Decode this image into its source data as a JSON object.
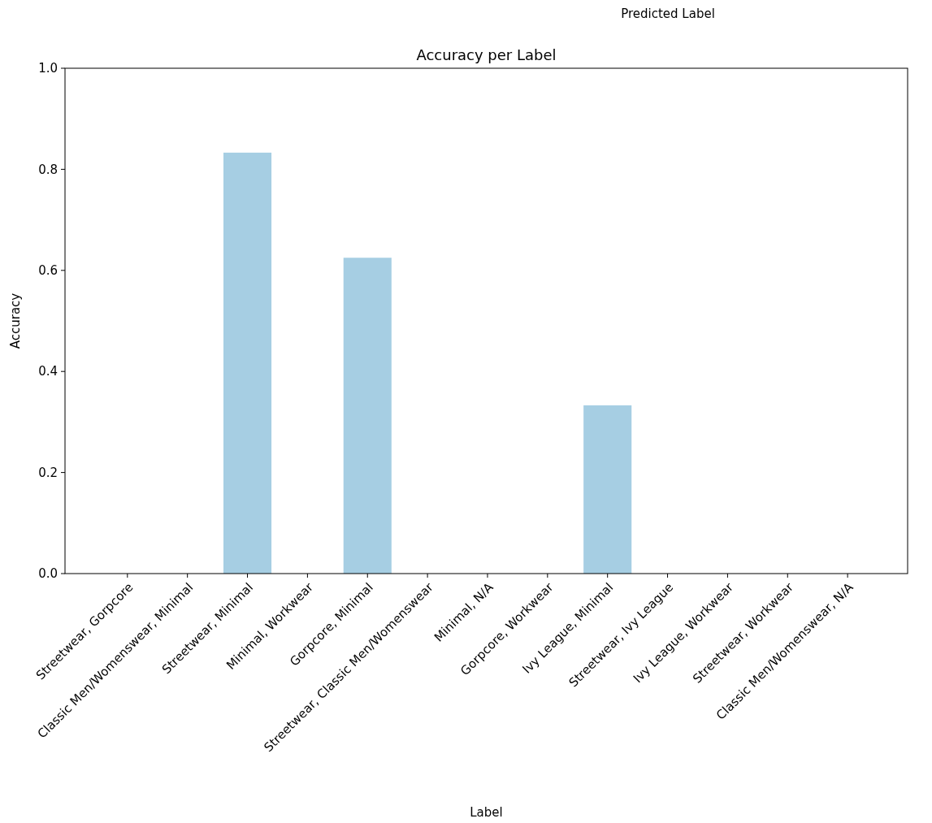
{
  "chart_data": {
    "type": "bar",
    "title": "Accuracy per Label",
    "xlabel": "Label",
    "ylabel": "Accuracy",
    "categories": [
      "Streetwear, Gorpcore",
      "Classic Men/Womenswear, Minimal",
      "Streetwear, Minimal",
      "Minimal, Workwear",
      "Gorpcore, Minimal",
      "Streetwear, Classic Men/Womenswear",
      "Minimal, N/A",
      "Gorpcore, Workwear",
      "Ivy League, Minimal",
      "Streetwear, Ivy League",
      "Ivy League, Workwear",
      "Streetwear, Workwear",
      "Classic Men/Womenswear, N/A"
    ],
    "values": [
      0,
      0,
      0.833,
      0,
      0.625,
      0,
      0,
      0,
      0.333,
      0,
      0,
      0,
      0
    ],
    "color": "#a6cee3",
    "ylim": [
      0,
      1
    ],
    "yticks": [
      {
        "value": 0,
        "label": "0.0"
      },
      {
        "value": 0.2,
        "label": "0.2"
      },
      {
        "value": 0.4,
        "label": "0.4"
      },
      {
        "value": 0.6,
        "label": "0.6"
      },
      {
        "value": 0.8,
        "label": "0.8"
      },
      {
        "value": 1,
        "label": "1.0"
      }
    ],
    "grid": false,
    "annotations": [
      "Predicted Label"
    ]
  }
}
